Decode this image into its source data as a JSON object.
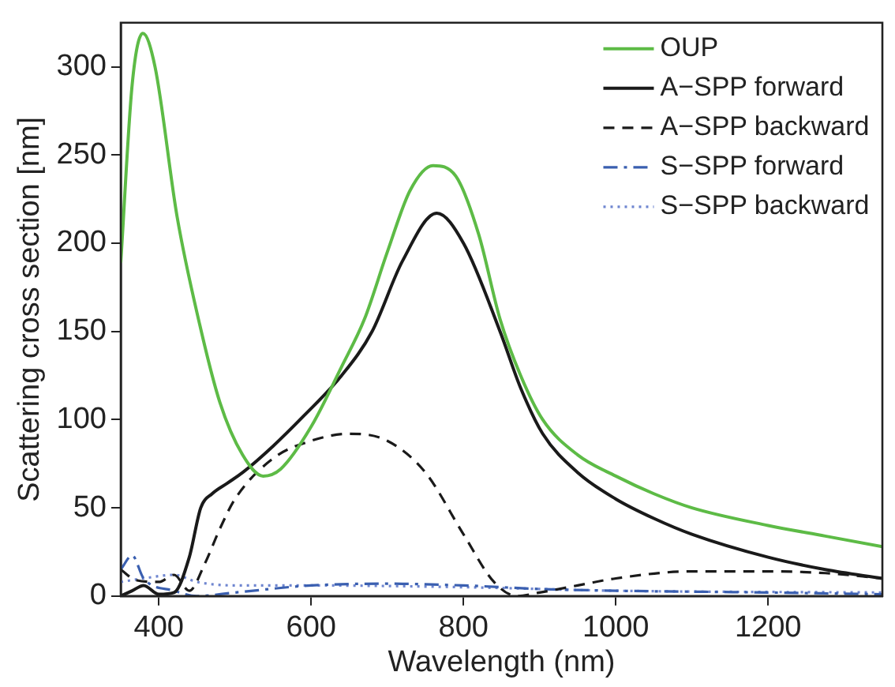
{
  "chart_data": {
    "type": "line",
    "xlabel": "Wavelength (nm)",
    "ylabel": "Scattering cross section [nm]",
    "xlim": [
      350,
      1350
    ],
    "xticks": [
      400,
      600,
      800,
      1000,
      1200
    ],
    "ylim": [
      0,
      325
    ],
    "yticks": [
      0,
      50,
      100,
      150,
      200,
      250,
      300
    ],
    "legend": "top right",
    "grid": false,
    "marker": "none",
    "series": [
      {
        "name": "OUP",
        "color": "#5dbb46",
        "line_style": "solid",
        "x": [
          350,
          365,
          379,
          395,
          424,
          452,
          480,
          510,
          537,
          560,
          600,
          640,
          670,
          700,
          730,
          760,
          790,
          820,
          848,
          875,
          904,
          950,
          1000,
          1050,
          1100,
          1200,
          1275,
          1350
        ],
        "values": [
          189,
          290,
          319,
          300,
          215,
          157,
          110,
          80,
          68,
          72,
          96,
          130,
          157,
          195,
          230,
          244,
          238,
          205,
          157,
          125,
          100,
          80,
          68,
          58,
          50,
          40,
          34,
          28
        ]
      },
      {
        "name": "A−SPP forward",
        "color": "#1a1a1a",
        "line_style": "solid",
        "x": [
          350,
          365,
          380,
          400,
          420,
          440,
          455,
          470,
          490,
          510,
          550,
          590,
          640,
          680,
          720,
          765,
          800,
          848,
          875,
          904,
          950,
          1000,
          1050,
          1100,
          1200,
          1275,
          1350
        ],
        "values": [
          0,
          3,
          6,
          1,
          2,
          22,
          50,
          58,
          64,
          70,
          85,
          102,
          125,
          150,
          190,
          217,
          200,
          150,
          118,
          92,
          70,
          55,
          44,
          35,
          22,
          15,
          10
        ]
      },
      {
        "name": "A−SPP backward",
        "color": "#1a1a1a",
        "line_style": "dashed",
        "x": [
          350,
          370,
          400,
          420,
          440,
          460,
          480,
          500,
          550,
          600,
          650,
          700,
          750,
          800,
          840,
          870,
          900,
          950,
          1000,
          1100,
          1200,
          1275,
          1350
        ],
        "values": [
          15,
          9,
          8,
          12,
          3,
          18,
          38,
          55,
          78,
          88,
          92,
          88,
          70,
          35,
          8,
          0,
          2,
          6,
          10,
          14,
          14,
          13,
          10
        ]
      },
      {
        "name": "S−SPP forward",
        "color": "#3a5fb0",
        "line_style": "dashdot",
        "x": [
          350,
          365,
          380,
          420,
          450,
          500,
          600,
          700,
          800,
          900,
          1000,
          1200,
          1350
        ],
        "values": [
          15,
          23,
          10,
          3,
          0,
          2,
          6,
          7,
          6,
          4,
          3,
          2,
          1
        ]
      },
      {
        "name": "S−SPP backward",
        "color": "#6f86d0",
        "line_style": "dotted",
        "x": [
          350,
          380,
          420,
          450,
          500,
          600,
          800,
          1000,
          1350
        ],
        "values": [
          8,
          10,
          12,
          8,
          6,
          6,
          5,
          3,
          2
        ]
      }
    ]
  }
}
